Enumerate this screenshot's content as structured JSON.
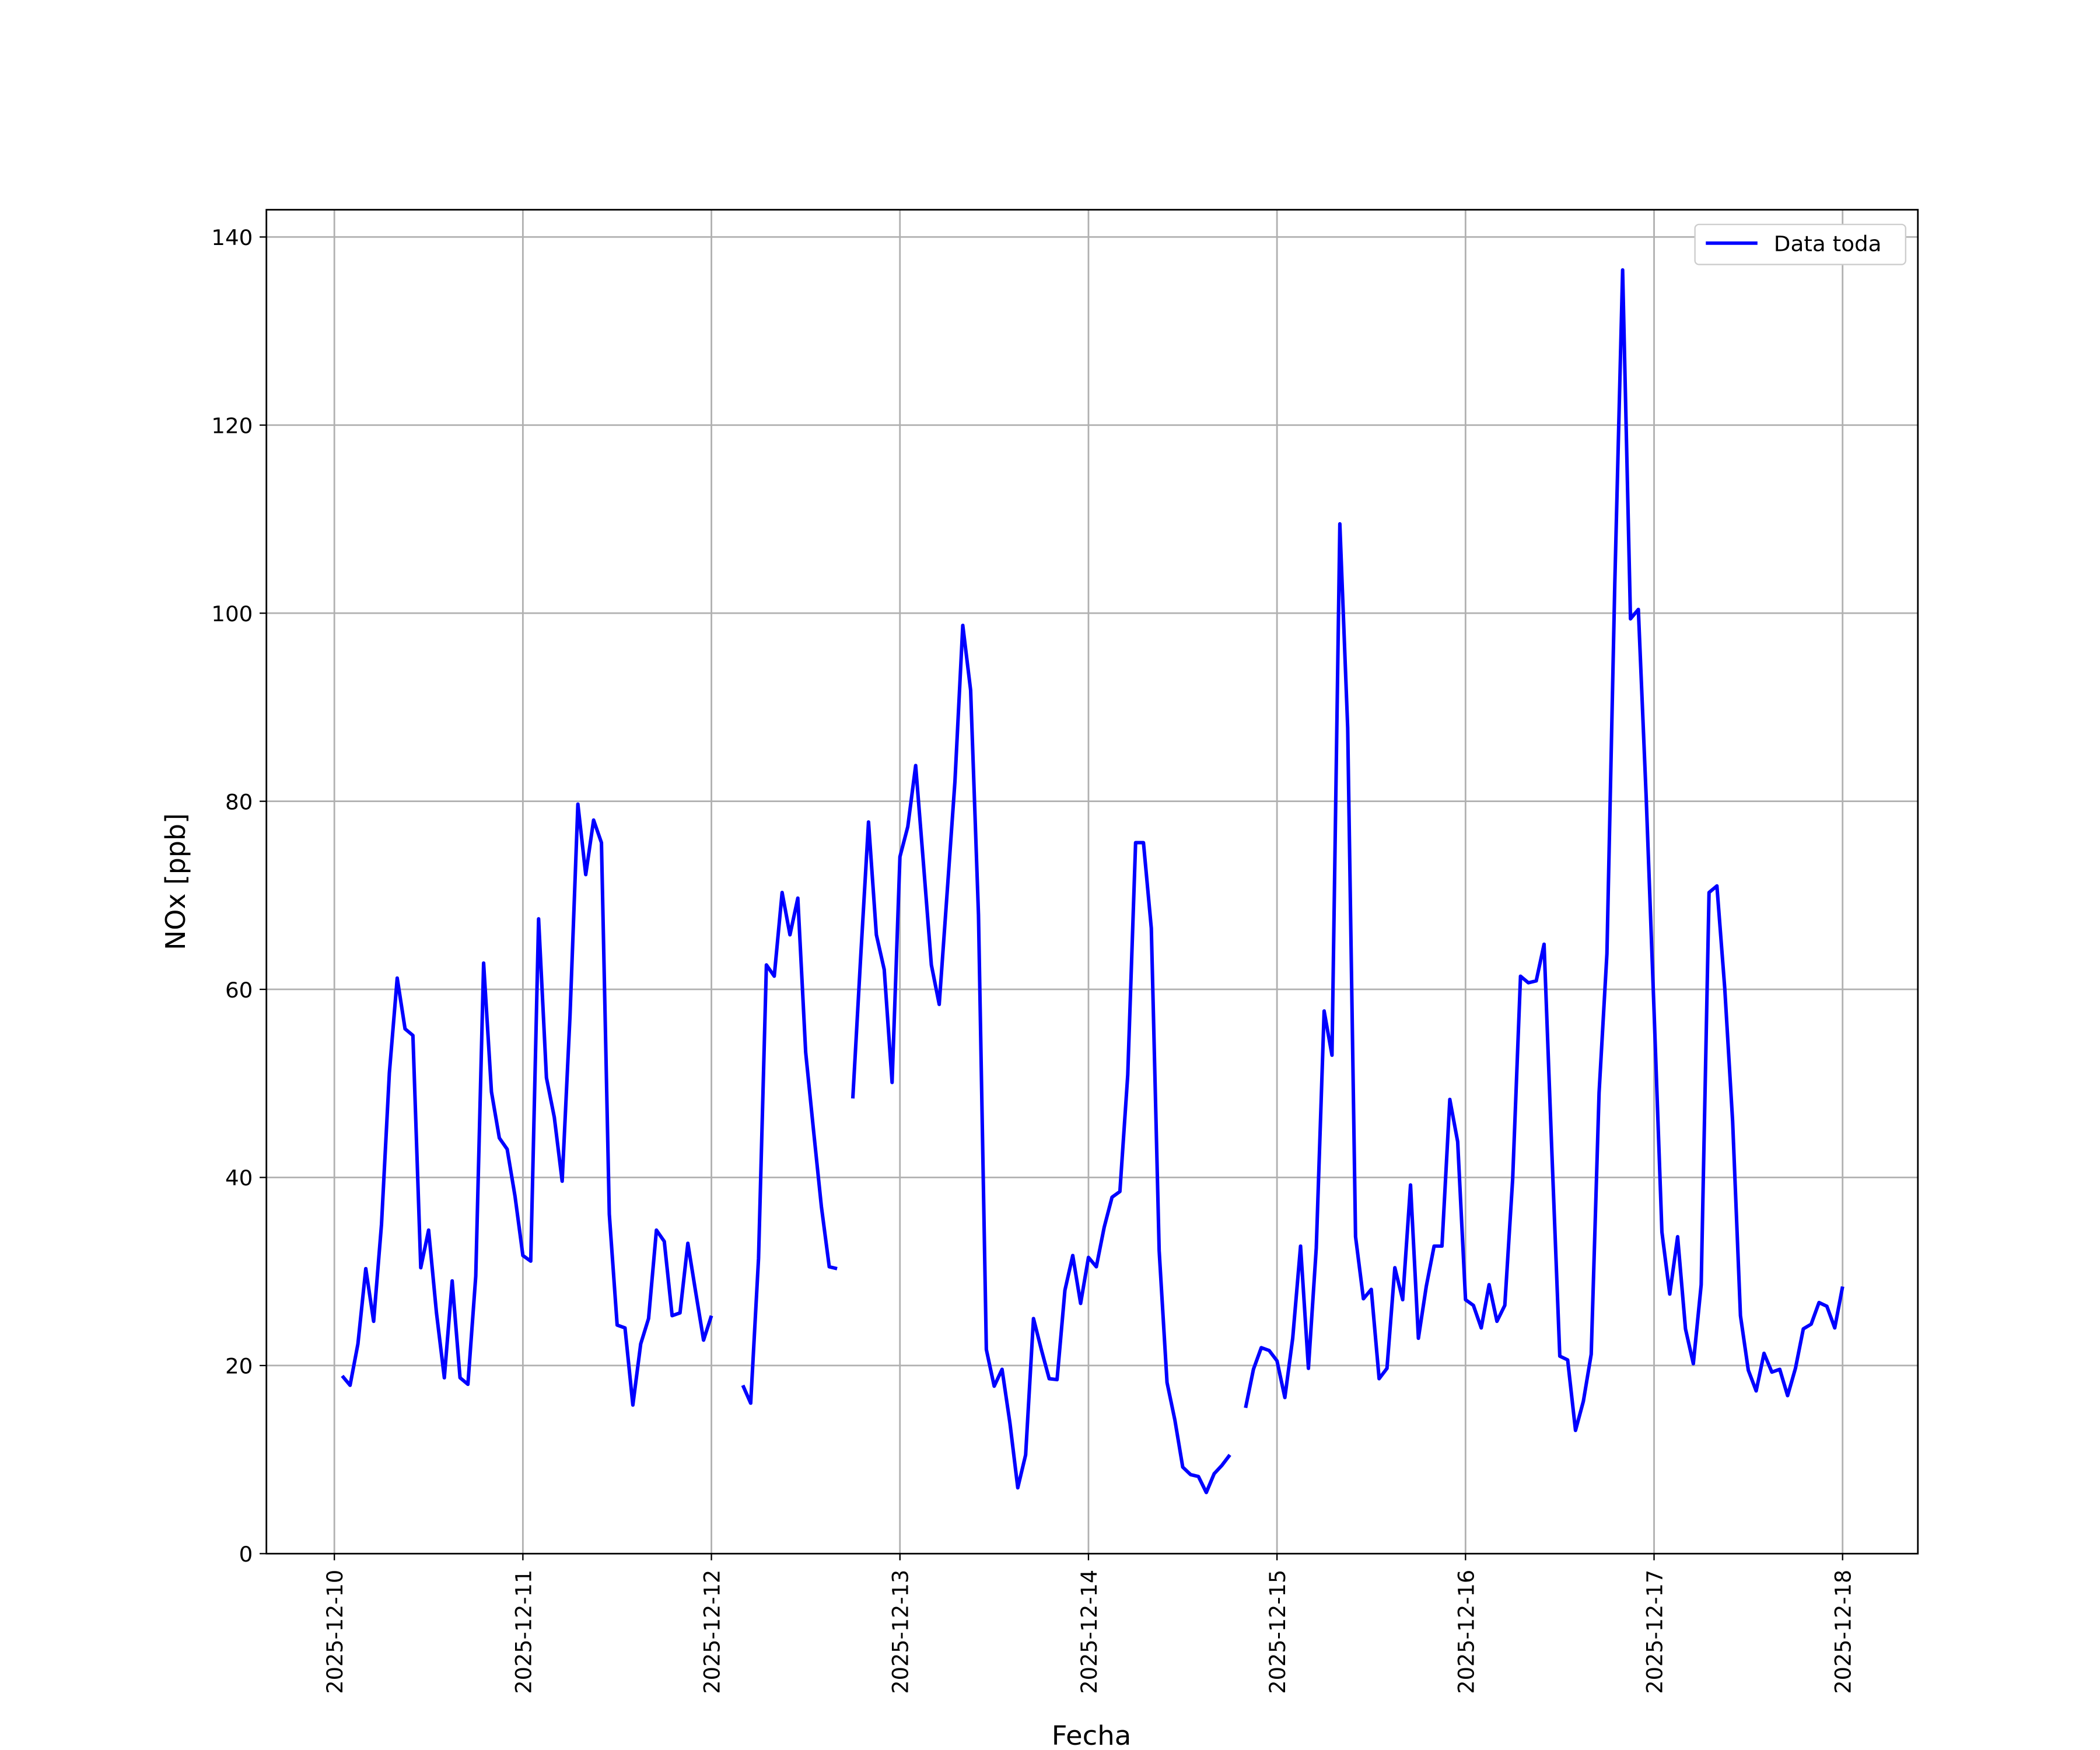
{
  "chart_data": {
    "type": "line",
    "xlabel": "Fecha",
    "ylabel": "NOx [ppb]",
    "x": [
      "2025-12-10 01:00",
      "2025-12-10 02:00",
      "2025-12-10 03:00",
      "2025-12-10 04:00",
      "2025-12-10 05:00",
      "2025-12-10 06:00",
      "2025-12-10 07:00",
      "2025-12-10 08:00",
      "2025-12-10 09:00",
      "2025-12-10 10:00",
      "2025-12-10 11:00",
      "2025-12-10 12:00",
      "2025-12-10 13:00",
      "2025-12-10 14:00",
      "2025-12-10 15:00",
      "2025-12-10 16:00",
      "2025-12-10 17:00",
      "2025-12-10 18:00",
      "2025-12-10 19:00",
      "2025-12-10 20:00",
      "2025-12-10 21:00",
      "2025-12-10 22:00",
      "2025-12-10 23:00",
      "2025-12-11 00:00",
      "2025-12-11 01:00",
      "2025-12-11 02:00",
      "2025-12-11 03:00",
      "2025-12-11 04:00",
      "2025-12-11 05:00",
      "2025-12-11 06:00",
      "2025-12-11 07:00",
      "2025-12-11 08:00",
      "2025-12-11 09:00",
      "2025-12-11 10:00",
      "2025-12-11 11:00",
      "2025-12-11 12:00",
      "2025-12-11 13:00",
      "2025-12-11 14:00",
      "2025-12-11 15:00",
      "2025-12-11 16:00",
      "2025-12-11 17:00",
      "2025-12-11 18:00",
      "2025-12-11 19:00",
      "2025-12-11 20:00",
      "2025-12-11 21:00",
      "2025-12-11 22:00",
      "2025-12-11 23:00",
      "2025-12-12 00:00",
      "2025-12-12 01:00",
      "2025-12-12 02:00",
      "2025-12-12 03:00",
      "2025-12-12 04:00",
      "2025-12-12 05:00",
      "2025-12-12 06:00",
      "2025-12-12 07:00",
      "2025-12-12 08:00",
      "2025-12-12 09:00",
      "2025-12-12 10:00",
      "2025-12-12 11:00",
      "2025-12-12 12:00",
      "2025-12-12 13:00",
      "2025-12-12 14:00",
      "2025-12-12 15:00",
      "2025-12-12 16:00",
      "2025-12-12 17:00",
      "2025-12-12 18:00",
      "2025-12-12 19:00",
      "2025-12-12 20:00",
      "2025-12-12 21:00",
      "2025-12-12 22:00",
      "2025-12-12 23:00",
      "2025-12-13 00:00",
      "2025-12-13 01:00",
      "2025-12-13 02:00",
      "2025-12-13 03:00",
      "2025-12-13 04:00",
      "2025-12-13 05:00",
      "2025-12-13 06:00",
      "2025-12-13 07:00",
      "2025-12-13 08:00",
      "2025-12-13 09:00",
      "2025-12-13 10:00",
      "2025-12-13 11:00",
      "2025-12-13 12:00",
      "2025-12-13 13:00",
      "2025-12-13 14:00",
      "2025-12-13 15:00",
      "2025-12-13 16:00",
      "2025-12-13 17:00",
      "2025-12-13 18:00",
      "2025-12-13 19:00",
      "2025-12-13 20:00",
      "2025-12-13 21:00",
      "2025-12-13 22:00",
      "2025-12-13 23:00",
      "2025-12-14 00:00",
      "2025-12-14 01:00",
      "2025-12-14 02:00",
      "2025-12-14 03:00",
      "2025-12-14 04:00",
      "2025-12-14 05:00",
      "2025-12-14 06:00",
      "2025-12-14 07:00",
      "2025-12-14 08:00",
      "2025-12-14 09:00",
      "2025-12-14 10:00",
      "2025-12-14 11:00",
      "2025-12-14 12:00",
      "2025-12-14 13:00",
      "2025-12-14 14:00",
      "2025-12-14 15:00",
      "2025-12-14 16:00",
      "2025-12-14 17:00",
      "2025-12-14 18:00",
      "2025-12-14 19:00",
      "2025-12-14 20:00",
      "2025-12-14 21:00",
      "2025-12-14 22:00",
      "2025-12-14 23:00",
      "2025-12-15 00:00",
      "2025-12-15 01:00",
      "2025-12-15 02:00",
      "2025-12-15 03:00",
      "2025-12-15 04:00",
      "2025-12-15 05:00",
      "2025-12-15 06:00",
      "2025-12-15 07:00",
      "2025-12-15 08:00",
      "2025-12-15 09:00",
      "2025-12-15 10:00",
      "2025-12-15 11:00",
      "2025-12-15 12:00",
      "2025-12-15 13:00",
      "2025-12-15 14:00",
      "2025-12-15 15:00",
      "2025-12-15 16:00",
      "2025-12-15 17:00",
      "2025-12-15 18:00",
      "2025-12-15 19:00",
      "2025-12-15 20:00",
      "2025-12-15 21:00",
      "2025-12-15 22:00",
      "2025-12-15 23:00",
      "2025-12-16 00:00",
      "2025-12-16 01:00",
      "2025-12-16 02:00",
      "2025-12-16 03:00",
      "2025-12-16 04:00",
      "2025-12-16 05:00",
      "2025-12-16 06:00",
      "2025-12-16 07:00",
      "2025-12-16 08:00",
      "2025-12-16 09:00",
      "2025-12-16 10:00",
      "2025-12-16 11:00",
      "2025-12-16 12:00",
      "2025-12-16 13:00",
      "2025-12-16 14:00",
      "2025-12-16 15:00",
      "2025-12-16 16:00",
      "2025-12-16 17:00",
      "2025-12-16 18:00",
      "2025-12-16 19:00",
      "2025-12-16 20:00",
      "2025-12-16 21:00",
      "2025-12-16 22:00",
      "2025-12-16 23:00",
      "2025-12-17 00:00",
      "2025-12-17 01:00",
      "2025-12-17 02:00",
      "2025-12-17 03:00",
      "2025-12-17 04:00",
      "2025-12-17 05:00",
      "2025-12-17 06:00",
      "2025-12-17 07:00",
      "2025-12-17 08:00",
      "2025-12-17 09:00",
      "2025-12-17 10:00",
      "2025-12-17 11:00",
      "2025-12-17 12:00",
      "2025-12-17 13:00",
      "2025-12-17 14:00",
      "2025-12-17 15:00",
      "2025-12-17 16:00",
      "2025-12-17 17:00",
      "2025-12-17 18:00",
      "2025-12-17 19:00",
      "2025-12-17 20:00",
      "2025-12-17 21:00",
      "2025-12-17 22:00",
      "2025-12-17 23:00",
      "2025-12-18 00:00"
    ],
    "series": [
      {
        "name": "Data toda",
        "color": "#0000ff",
        "values": [
          18.9,
          17.9,
          22.3,
          30.3,
          24.7,
          35,
          51.1,
          61.2,
          55.8,
          55.1,
          30.4,
          34.4,
          25.6,
          18.7,
          29,
          18.7,
          18,
          29.5,
          62.8,
          49.1,
          44.2,
          43,
          38,
          31.7,
          31.1,
          67.5,
          50.6,
          46.4,
          39.6,
          57.2,
          79.7,
          72.2,
          78,
          75.6,
          36.1,
          24.3,
          24,
          15.8,
          22.3,
          25,
          34.4,
          33.2,
          25.3,
          25.6,
          33,
          27.8,
          22.7,
          25.3,
          null,
          null,
          null,
          17.9,
          16,
          31.4,
          62.6,
          61.4,
          70.3,
          65.8,
          69.7,
          53.3,
          45,
          36.9,
          30.5,
          30.3,
          null,
          48.4,
          63.4,
          77.8,
          65.8,
          62.1,
          50.1,
          74.1,
          77.3,
          83.8,
          73.3,
          62.6,
          58.4,
          70.2,
          82.1,
          98.7,
          91.8,
          67.9,
          21.7,
          17.8,
          19.6,
          13.9,
          7,
          10.5,
          25,
          21.7,
          18.6,
          18.5,
          28,
          31.7,
          26.6,
          31.5,
          30.5,
          34.7,
          37.9,
          38.5,
          50.9,
          75.6,
          75.6,
          66.5,
          32.2,
          18.2,
          14.2,
          9.2,
          8.4,
          8.2,
          6.5,
          8.5,
          9.4,
          10.5,
          null,
          15.5,
          19.6,
          21.9,
          21.6,
          20.5,
          16.6,
          22.9,
          32.7,
          19.7,
          32.5,
          57.7,
          53,
          109.5,
          87.8,
          33.7,
          27.1,
          28.1,
          18.6,
          19.7,
          30.4,
          27,
          39.2,
          22.9,
          28.4,
          32.7,
          32.7,
          48.3,
          43.8,
          27,
          26.4,
          24,
          28.6,
          24.7,
          26.4,
          39.8,
          61.4,
          60.7,
          60.9,
          64.8,
          42.5,
          21,
          20.6,
          13.1,
          16.2,
          21.2,
          49,
          63.8,
          103.1,
          136.5,
          99.4,
          100.4,
          80.4,
          57.7,
          34.2,
          27.6,
          33.7,
          23.9,
          20.2,
          28.6,
          70.3,
          71,
          60.1,
          46,
          25.3,
          19.5,
          17.3,
          21.3,
          19.3,
          19.6,
          16.8,
          19.7,
          23.9,
          24.4,
          26.7,
          26.3,
          24,
          28.4
        ]
      }
    ],
    "xlim": [
      "2025-12-09 15:21",
      "2025-12-18 09:35"
    ],
    "xticks": [
      "2025-12-10",
      "2025-12-11",
      "2025-12-12",
      "2025-12-13",
      "2025-12-14",
      "2025-12-15",
      "2025-12-16",
      "2025-12-17",
      "2025-12-18"
    ],
    "ylim": [
      0,
      142.9
    ],
    "yticks": [
      0,
      20,
      40,
      60,
      80,
      100,
      120,
      140
    ],
    "grid": true,
    "legend": "upper right"
  }
}
